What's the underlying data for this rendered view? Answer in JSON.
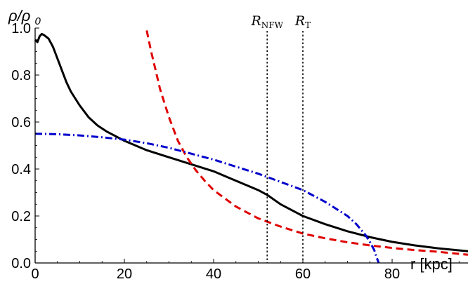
{
  "chart_data": {
    "type": "line",
    "xlabel": "r [kpc]",
    "ylabel": "ρ/ρ0",
    "xlim": [
      0,
      97
    ],
    "ylim": [
      0,
      1.0
    ],
    "xticks": [
      0,
      20,
      40,
      60,
      80
    ],
    "yticks": [
      0.0,
      0.2,
      0.4,
      0.6,
      0.8,
      1.0
    ],
    "xtick_labels": [
      "0",
      "20",
      "40",
      "60",
      "80"
    ],
    "ytick_labels": [
      "0.0",
      "0.2",
      "0.4",
      "0.6",
      "0.8",
      "1.0"
    ],
    "grid": false,
    "markers": [
      {
        "label": "R",
        "sub": "NFW",
        "x": 52
      },
      {
        "label": "R",
        "sub": "T",
        "x": 60
      }
    ],
    "series": [
      {
        "color": "#000000",
        "style": "solid",
        "x": [
          0,
          0.5,
          1,
          1.5,
          2,
          3,
          4,
          5,
          6,
          7,
          8,
          10,
          12,
          14,
          16,
          18,
          20,
          25,
          30,
          35,
          40,
          45,
          50,
          52,
          55,
          58,
          60,
          65,
          70,
          75,
          80,
          85,
          90,
          97
        ],
        "y": [
          0.95,
          0.94,
          0.965,
          0.975,
          0.97,
          0.955,
          0.92,
          0.87,
          0.82,
          0.77,
          0.73,
          0.67,
          0.62,
          0.585,
          0.56,
          0.54,
          0.52,
          0.48,
          0.45,
          0.42,
          0.39,
          0.35,
          0.31,
          0.29,
          0.25,
          0.22,
          0.2,
          0.165,
          0.135,
          0.11,
          0.09,
          0.075,
          0.063,
          0.05
        ]
      },
      {
        "color": "#e00000",
        "style": "dashed",
        "x": [
          25,
          26,
          27,
          28,
          30,
          32,
          34,
          36,
          38,
          40,
          45,
          50,
          55,
          60,
          65,
          70,
          75,
          80,
          85,
          90,
          97
        ],
        "y": [
          0.99,
          0.9,
          0.82,
          0.74,
          0.62,
          0.52,
          0.45,
          0.395,
          0.35,
          0.31,
          0.24,
          0.19,
          0.155,
          0.125,
          0.105,
          0.088,
          0.075,
          0.064,
          0.055,
          0.048,
          0.035
        ]
      },
      {
        "color": "#0000cc",
        "style": "dashdot",
        "x": [
          0,
          5,
          10,
          15,
          20,
          25,
          30,
          35,
          40,
          45,
          50,
          55,
          60,
          65,
          70,
          72,
          74,
          75,
          76,
          76.5,
          77
        ],
        "y": [
          0.55,
          0.548,
          0.543,
          0.535,
          0.525,
          0.51,
          0.49,
          0.465,
          0.44,
          0.41,
          0.38,
          0.345,
          0.31,
          0.26,
          0.2,
          0.165,
          0.12,
          0.09,
          0.055,
          0.025,
          0.0
        ]
      }
    ]
  }
}
